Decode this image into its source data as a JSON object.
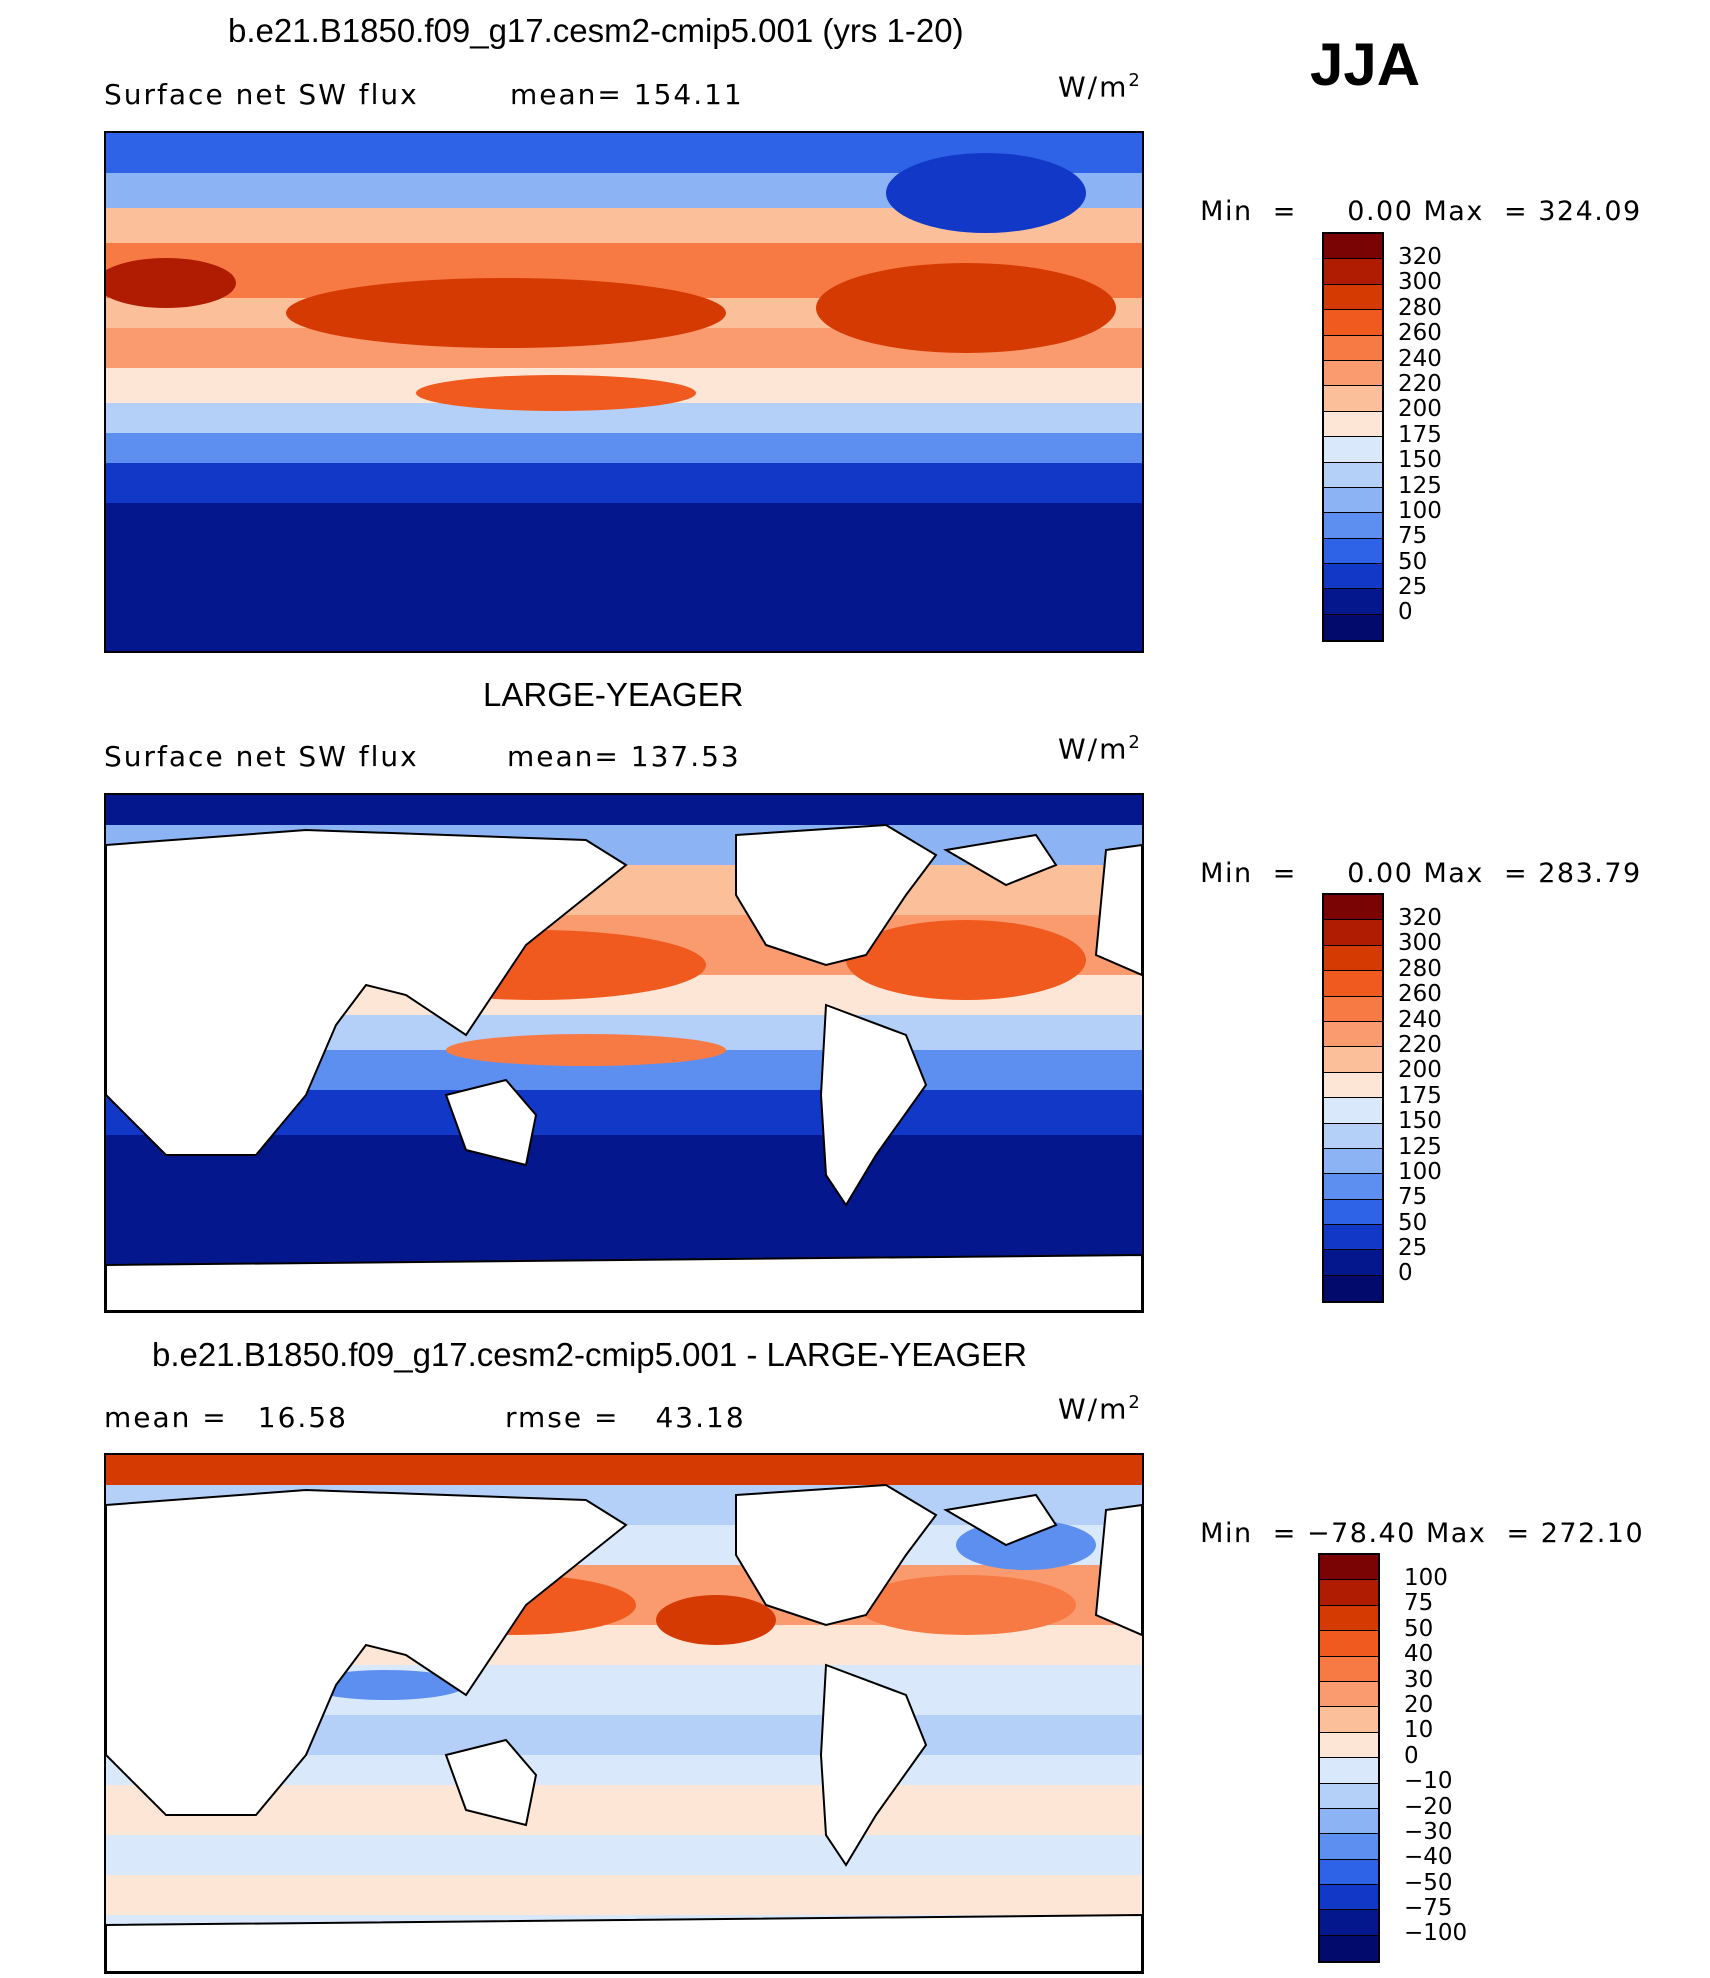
{
  "season": "JJA",
  "panels": [
    {
      "title": "b.e21.B1850.f09_g17.cesm2-cmip5.001 (yrs 1-20)",
      "subtitle_left": "Surface net SW flux",
      "subtitle_mid": "mean= 154.11",
      "units": "W/m",
      "units_sup": "2",
      "min_label": "Min  =",
      "min_value": "0.00",
      "max_label": "Max  =",
      "max_value": "324.09",
      "colorbar_ticks": [
        "320",
        "300",
        "280",
        "260",
        "240",
        "220",
        "200",
        "175",
        "150",
        "125",
        "100",
        "75",
        "50",
        "25",
        "0"
      ],
      "ocean_only": false
    },
    {
      "title": "LARGE-YEAGER",
      "subtitle_left": "Surface net SW flux",
      "subtitle_mid": "mean= 137.53",
      "units": "W/m",
      "units_sup": "2",
      "min_label": "Min  =",
      "min_value": "0.00",
      "max_label": "Max  =",
      "max_value": "283.79",
      "colorbar_ticks": [
        "320",
        "300",
        "280",
        "260",
        "240",
        "220",
        "200",
        "175",
        "150",
        "125",
        "100",
        "75",
        "50",
        "25",
        "0"
      ],
      "ocean_only": true
    },
    {
      "title": "b.e21.B1850.f09_g17.cesm2-cmip5.001 - LARGE-YEAGER",
      "subtitle_left": "mean =",
      "subtitle_left_value": "16.58",
      "subtitle_mid": "rmse =",
      "subtitle_mid_value": "43.18",
      "units": "W/m",
      "units_sup": "2",
      "min_label": "Min  =",
      "min_value": "−78.40",
      "max_label": "Max  =",
      "max_value": "272.10",
      "colorbar_ticks": [
        "100",
        "75",
        "50",
        "40",
        "30",
        "20",
        "10",
        "0",
        "−10",
        "−20",
        "−30",
        "−40",
        "−50",
        "−75",
        "−100"
      ],
      "ocean_only": true
    }
  ],
  "colors": {
    "flux_scale": [
      "#7a0403",
      "#b01c02",
      "#d63a03",
      "#f05a1e",
      "#f77a45",
      "#f99b6e",
      "#fbbf9a",
      "#fde6d5",
      "#d9e9fb",
      "#b4d0f8",
      "#8cb4f4",
      "#5d8ff0",
      "#2e63e8",
      "#1238c8",
      "#05178c",
      "#020a6b"
    ],
    "diff_scale": [
      "#7a0403",
      "#b01c02",
      "#d63a03",
      "#f05a1e",
      "#f77a45",
      "#f99b6e",
      "#fbbf9a",
      "#fde6d5",
      "#d9e9fb",
      "#b4d0f8",
      "#8cb4f4",
      "#5d8ff0",
      "#2e63e8",
      "#1238c8",
      "#05178c",
      "#020a6b"
    ]
  }
}
